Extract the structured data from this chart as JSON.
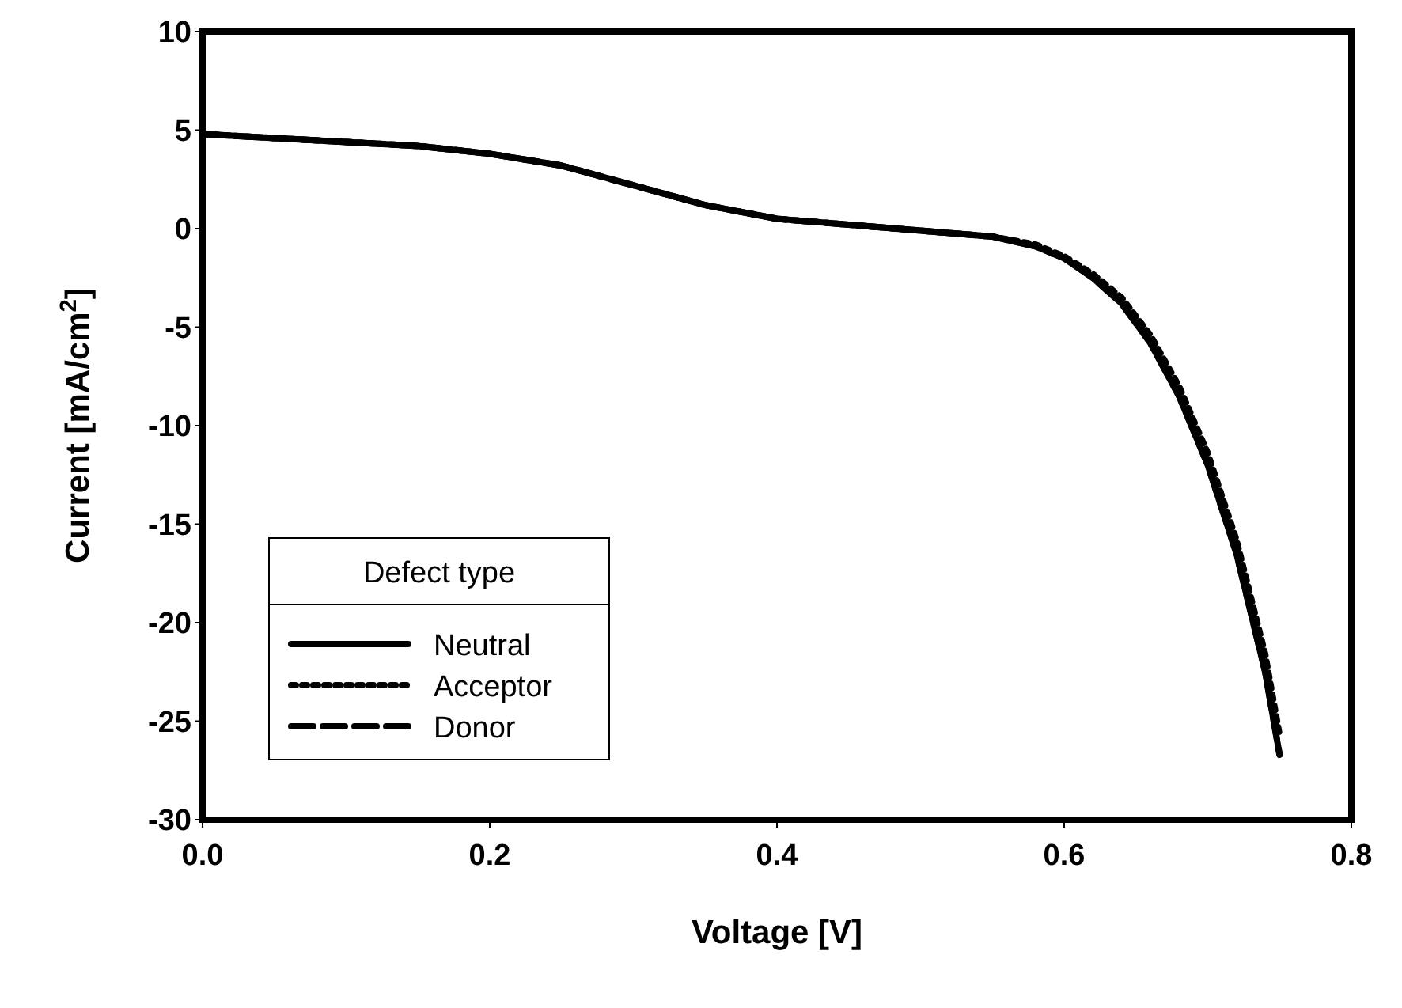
{
  "chart_data": {
    "type": "line",
    "xlabel": "Voltage [V]",
    "ylabel": "Current [mA/cm$^{2}$]",
    "legend_title": "Defect type",
    "legend": "bottom left",
    "xlim": [
      0,
      0.8
    ],
    "ylim": [
      -30,
      10
    ],
    "xticks": [
      {
        "value": 0,
        "label": "0.0"
      },
      0.2,
      0.4,
      0.6,
      0.8
    ],
    "yticks": [
      -30,
      -25,
      -20,
      -15,
      -10,
      -5,
      0,
      5,
      10
    ],
    "grid": false,
    "marker": "none",
    "x": [
      0,
      0.05,
      0.1,
      0.15,
      0.2,
      0.25,
      0.3,
      0.35,
      0.4,
      0.45,
      0.5,
      0.55,
      0.58,
      0.6,
      0.62,
      0.64,
      0.66,
      0.68,
      0.7,
      0.72,
      0.74,
      0.75
    ],
    "series": [
      {
        "name": "Neutral",
        "color": "#000000",
        "line_style": "solid",
        "values": [
          4.8,
          4.6,
          4.4,
          4.2,
          3.8,
          3.2,
          2.2,
          1.2,
          0.5,
          0.2,
          -0.1,
          -0.4,
          -0.9,
          -1.5,
          -2.5,
          -3.8,
          -5.8,
          -8.5,
          -12,
          -16.5,
          -22.5,
          -26.7
        ]
      },
      {
        "name": "Acceptor",
        "color": "#000000",
        "line_style": "dotted",
        "values": [
          4.8,
          4.6,
          4.4,
          4.2,
          3.8,
          3.2,
          2.2,
          1.2,
          0.5,
          0.2,
          -0.1,
          -0.4,
          -0.8,
          -1.4,
          -2.3,
          -3.5,
          -5.4,
          -8,
          -11.4,
          -15.8,
          -21.6,
          -25.7
        ]
      },
      {
        "name": "Donor",
        "color": "#000000",
        "line_style": "dashed",
        "values": [
          4.8,
          4.6,
          4.4,
          4.2,
          3.8,
          3.2,
          2.2,
          1.2,
          0.5,
          0.2,
          -0.1,
          -0.4,
          -0.9,
          -1.5,
          -2.5,
          -3.8,
          -5.8,
          -8.5,
          -12,
          -16.5,
          -22.5,
          -26.7
        ]
      }
    ]
  }
}
